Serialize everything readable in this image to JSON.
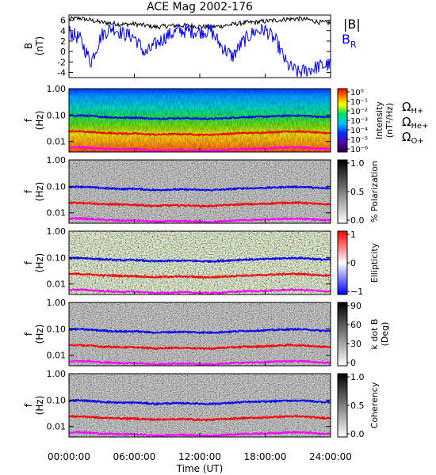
{
  "title": "ACE Mag 2002-176",
  "x_axis": {
    "label": "Time (UT)",
    "ticks": [
      "00:00:00",
      "06:00:00",
      "12:00:00",
      "18:00:00",
      "24:00:00"
    ],
    "range_hours": [
      0,
      24
    ]
  },
  "labels": {
    "b_axis": "B",
    "b_units": "(nT)",
    "f_axis": "f",
    "f_units": "(Hz)",
    "legend_b_total": "|B|",
    "legend_b_r_main": "B",
    "legend_b_r_sub": "R",
    "omega_symbol": "Ω",
    "omega_h": "H+",
    "omega_he": "He+",
    "omega_o": "O+"
  },
  "colors": {
    "b_total": "#000000",
    "b_r": "#0000ff",
    "omega_h": "#0000ff",
    "omega_he": "#ff0000",
    "omega_o": "#ff00ff"
  },
  "chart_data": [
    {
      "type": "line",
      "panel": "magnetic field",
      "ylabel": "B (nT)",
      "ylim": [
        -5,
        7
      ],
      "yticks": [
        -4,
        -2,
        0,
        2,
        4,
        6
      ],
      "x_hours": [
        0,
        1,
        2,
        3,
        4,
        5,
        6,
        7,
        8,
        9,
        10,
        11,
        12,
        13,
        14,
        15,
        16,
        17,
        18,
        19,
        20,
        21,
        22,
        23,
        24
      ],
      "series": [
        {
          "name": "|B|",
          "values": [
            6.2,
            6.4,
            6.0,
            5.6,
            5.4,
            5.2,
            5.3,
            5.0,
            4.7,
            4.9,
            5.0,
            5.0,
            4.8,
            4.7,
            4.9,
            5.2,
            5.5,
            5.6,
            5.8,
            6.0,
            6.2,
            6.3,
            6.1,
            5.6,
            5.5
          ]
        },
        {
          "name": "B_R",
          "values": [
            3.8,
            2.5,
            -2.0,
            3.2,
            4.6,
            3.4,
            2.8,
            -0.5,
            1.5,
            3.0,
            4.0,
            3.9,
            3.8,
            4.0,
            1.0,
            -1.0,
            2.0,
            3.8,
            4.2,
            2.0,
            -2.5,
            -4.0,
            -3.5,
            -2.8,
            -2.5
          ]
        }
      ]
    },
    {
      "type": "heatmap",
      "panel": "wave intensity",
      "ylabel": "f (Hz)",
      "ylim_hz": [
        0.004,
        1.0
      ],
      "yscale": "log",
      "yticks": [
        "1.00",
        "0.10",
        "0.01"
      ],
      "colorbar": {
        "label": "Intensity",
        "units": "(nT²/Hz)",
        "ticks": [
          "10⁰",
          "10⁻¹",
          "10⁻²",
          "10⁻³",
          "10⁻⁴",
          "10⁻⁵",
          "10⁻⁶"
        ],
        "colormap": "rainbow"
      }
    },
    {
      "type": "heatmap",
      "panel": "polarization",
      "ylabel": "f (Hz)",
      "ylim_hz": [
        0.004,
        1.0
      ],
      "yscale": "log",
      "yticks": [
        "1.00",
        "0.10",
        "0.01"
      ],
      "colorbar": {
        "label": "% Polarization",
        "ticks": [
          "1.0",
          "0.5",
          "0.0"
        ],
        "colormap": "gray"
      }
    },
    {
      "type": "heatmap",
      "panel": "ellipticity",
      "ylabel": "f (Hz)",
      "ylim_hz": [
        0.004,
        1.0
      ],
      "yscale": "log",
      "yticks": [
        "1.00",
        "0.10",
        "0.01"
      ],
      "colorbar": {
        "label": "Ellipticity",
        "ticks": [
          "1",
          "0",
          "−1"
        ],
        "colormap": "blue-white-red"
      }
    },
    {
      "type": "heatmap",
      "panel": "wave normal angle",
      "ylabel": "f (Hz)",
      "ylim_hz": [
        0.004,
        1.0
      ],
      "yscale": "log",
      "yticks": [
        "1.00",
        "0.10",
        "0.01"
      ],
      "colorbar": {
        "label": "k dot B",
        "units": "(Deg)",
        "ticks": [
          "90",
          "60",
          "30",
          "0"
        ],
        "colormap": "gray"
      }
    },
    {
      "type": "heatmap",
      "panel": "coherency",
      "ylabel": "f (Hz)",
      "ylim_hz": [
        0.004,
        1.0
      ],
      "yscale": "log",
      "yticks": [
        "1.00",
        "0.10",
        "0.01"
      ],
      "colorbar": {
        "label": "Coherency",
        "ticks": [
          "1.0",
          "0.5",
          "0.0"
        ],
        "colormap": "gray"
      }
    }
  ],
  "gyrofrequencies": {
    "x_hours": [
      0,
      1,
      2,
      3,
      4,
      5,
      6,
      7,
      8,
      9,
      10,
      11,
      12,
      13,
      14,
      15,
      16,
      17,
      18,
      19,
      20,
      21,
      22,
      23,
      24
    ],
    "omega_h_plus_hz": [
      0.095,
      0.097,
      0.092,
      0.086,
      0.082,
      0.079,
      0.081,
      0.076,
      0.072,
      0.075,
      0.076,
      0.076,
      0.073,
      0.072,
      0.075,
      0.079,
      0.084,
      0.085,
      0.088,
      0.091,
      0.095,
      0.096,
      0.093,
      0.085,
      0.084
    ],
    "omega_he_plus_hz": [
      0.024,
      0.024,
      0.023,
      0.021,
      0.021,
      0.02,
      0.02,
      0.019,
      0.018,
      0.019,
      0.019,
      0.019,
      0.018,
      0.018,
      0.019,
      0.02,
      0.021,
      0.021,
      0.022,
      0.023,
      0.024,
      0.024,
      0.023,
      0.021,
      0.021
    ],
    "omega_o_plus_hz": [
      0.006,
      0.0061,
      0.0058,
      0.0054,
      0.0052,
      0.005,
      0.0051,
      0.0048,
      0.0045,
      0.0047,
      0.0048,
      0.0048,
      0.0046,
      0.0045,
      0.0047,
      0.005,
      0.0053,
      0.0053,
      0.0055,
      0.0057,
      0.006,
      0.006,
      0.0058,
      0.0053,
      0.0053
    ]
  }
}
